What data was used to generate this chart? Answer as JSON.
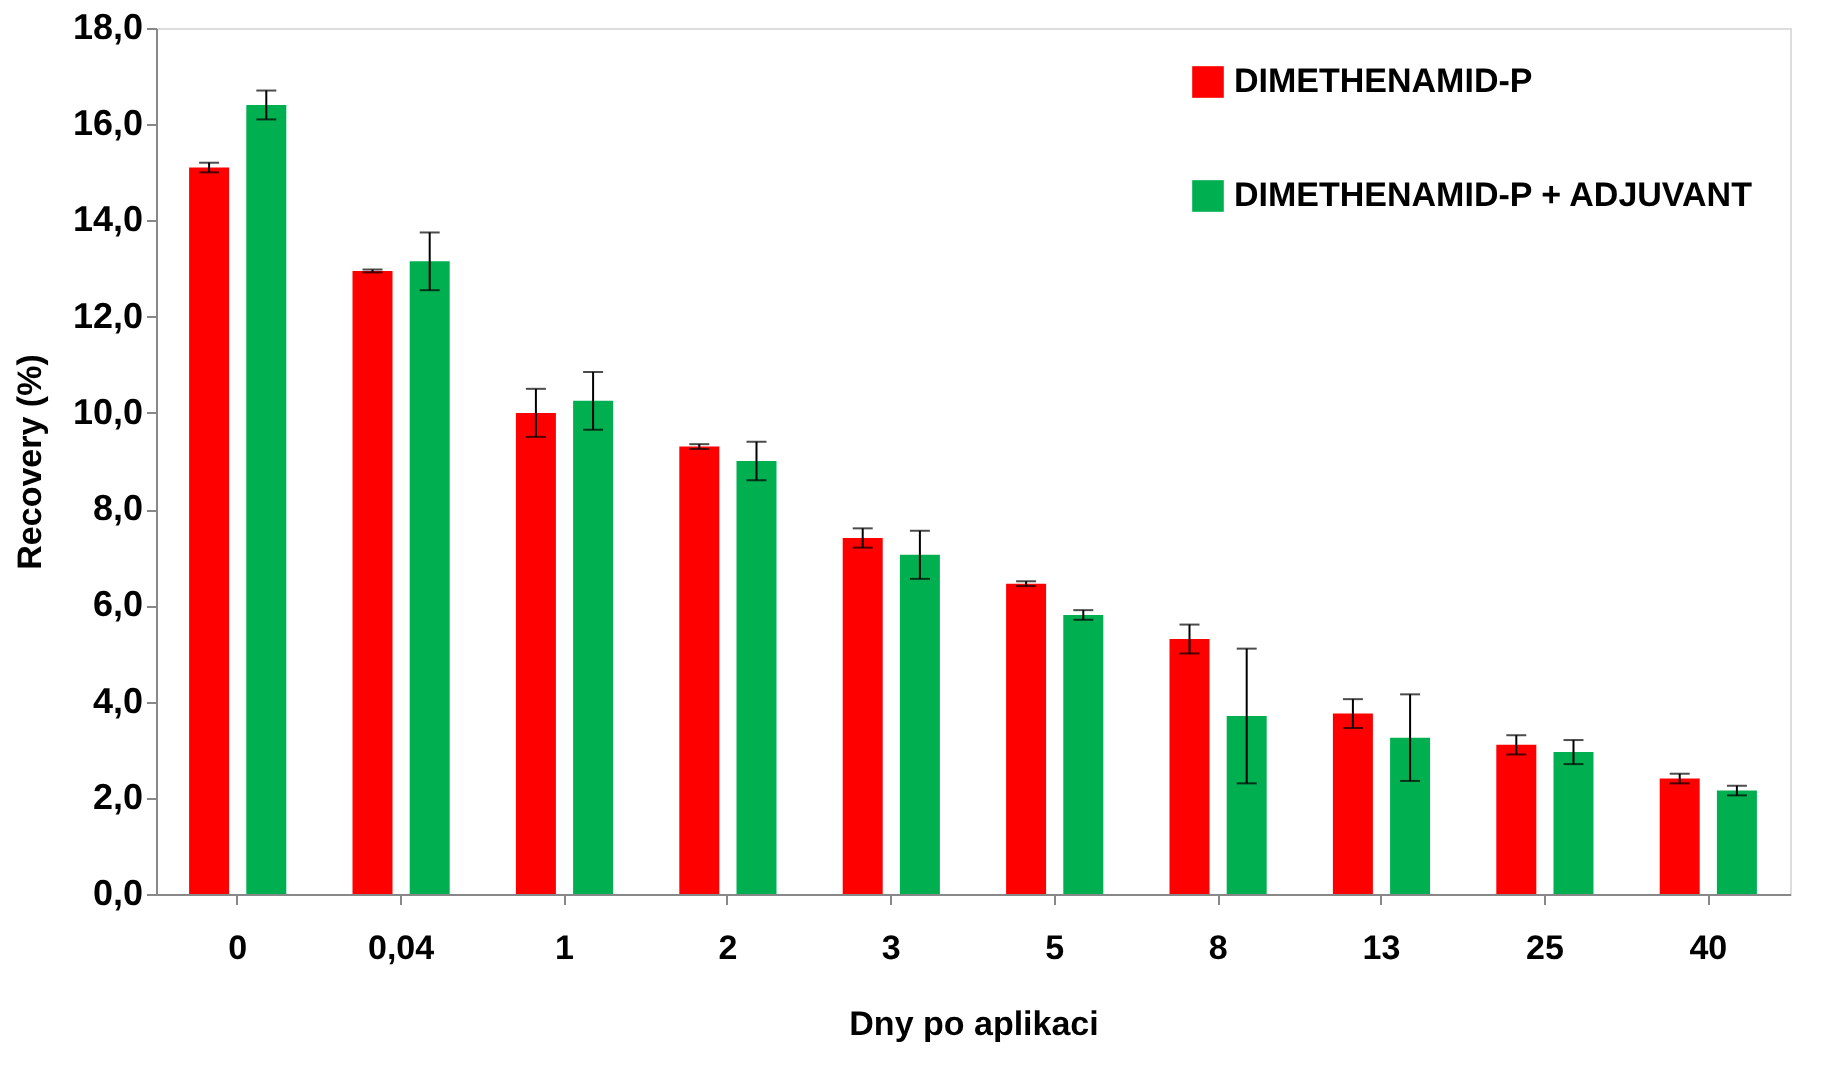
{
  "chart_data": {
    "type": "bar",
    "xlabel": "Dny po aplikaci",
    "ylabel": "Recovery (%)",
    "categories": [
      "0",
      "0,04",
      "1",
      "2",
      "3",
      "5",
      "8",
      "13",
      "25",
      "40"
    ],
    "series": [
      {
        "name": "DIMETHENAMID-P",
        "color": "#ff0000",
        "values": [
          15.1,
          12.95,
          10.0,
          9.3,
          7.4,
          6.45,
          5.3,
          3.75,
          3.1,
          2.4
        ],
        "errors": [
          0.1,
          0.03,
          0.5,
          0.05,
          0.2,
          0.05,
          0.3,
          0.3,
          0.2,
          0.1
        ]
      },
      {
        "name": "DIMETHENAMID-P + ADJUVANT",
        "color": "#00b050",
        "values": [
          16.4,
          13.15,
          10.25,
          9.0,
          7.05,
          5.8,
          3.7,
          3.25,
          2.95,
          2.15
        ],
        "errors": [
          0.3,
          0.6,
          0.6,
          0.4,
          0.5,
          0.1,
          1.4,
          0.9,
          0.25,
          0.1
        ]
      }
    ],
    "ylim": [
      0,
      18
    ],
    "yticks": [
      {
        "value": 0,
        "label": "0,0"
      },
      {
        "value": 2,
        "label": "2,0"
      },
      {
        "value": 4,
        "label": "4,0"
      },
      {
        "value": 6,
        "label": "6,0"
      },
      {
        "value": 8,
        "label": "8,0"
      },
      {
        "value": 10,
        "label": "10,0"
      },
      {
        "value": 12,
        "label": "12,0"
      },
      {
        "value": 14,
        "label": "14,0"
      },
      {
        "value": 16,
        "label": "16,0"
      },
      {
        "value": 18,
        "label": "18,0"
      }
    ],
    "grid": false,
    "legend": "top right"
  }
}
